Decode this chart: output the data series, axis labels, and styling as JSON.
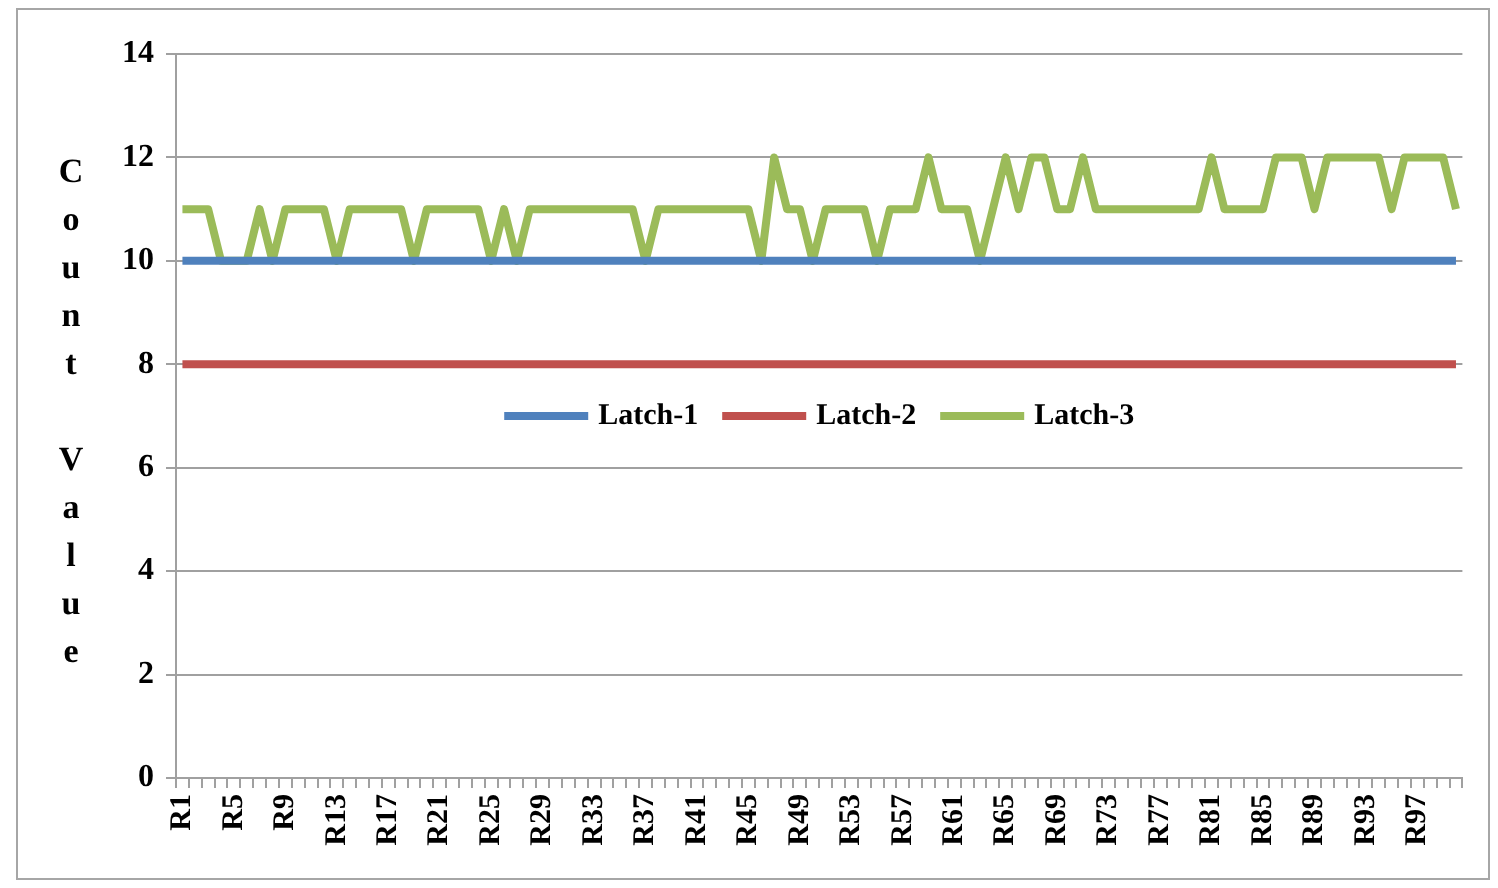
{
  "chart_data": {
    "type": "line",
    "ylabel": "Count Value",
    "categories": [
      "R1",
      null,
      null,
      null,
      "R5",
      null,
      null,
      null,
      "R9",
      null,
      null,
      null,
      "R13",
      null,
      null,
      null,
      "R17",
      null,
      null,
      null,
      "R21",
      null,
      null,
      null,
      "R25",
      null,
      null,
      null,
      "R29",
      null,
      null,
      null,
      "R33",
      null,
      null,
      null,
      "R37",
      null,
      null,
      null,
      "R41",
      null,
      null,
      null,
      "R45",
      null,
      null,
      null,
      "R49",
      null,
      null,
      null,
      "R53",
      null,
      null,
      null,
      "R57",
      null,
      null,
      null,
      "R61",
      null,
      null,
      null,
      "R65",
      null,
      null,
      null,
      "R69",
      null,
      null,
      null,
      "R73",
      null,
      null,
      null,
      "R77",
      null,
      null,
      null,
      "R81",
      null,
      null,
      null,
      "R85",
      null,
      null,
      null,
      "R89",
      null,
      null,
      null,
      "R93",
      null,
      null,
      null,
      "R97",
      null,
      null,
      null
    ],
    "series": [
      {
        "name": "Latch-1",
        "color": "#4f81bd",
        "values": [
          10,
          10,
          10,
          10,
          10,
          10,
          10,
          10,
          10,
          10,
          10,
          10,
          10,
          10,
          10,
          10,
          10,
          10,
          10,
          10,
          10,
          10,
          10,
          10,
          10,
          10,
          10,
          10,
          10,
          10,
          10,
          10,
          10,
          10,
          10,
          10,
          10,
          10,
          10,
          10,
          10,
          10,
          10,
          10,
          10,
          10,
          10,
          10,
          10,
          10,
          10,
          10,
          10,
          10,
          10,
          10,
          10,
          10,
          10,
          10,
          10,
          10,
          10,
          10,
          10,
          10,
          10,
          10,
          10,
          10,
          10,
          10,
          10,
          10,
          10,
          10,
          10,
          10,
          10,
          10,
          10,
          10,
          10,
          10,
          10,
          10,
          10,
          10,
          10,
          10,
          10,
          10,
          10,
          10,
          10,
          10,
          10,
          10,
          10,
          10
        ]
      },
      {
        "name": "Latch-2",
        "color": "#c0504d",
        "values": [
          8,
          8,
          8,
          8,
          8,
          8,
          8,
          8,
          8,
          8,
          8,
          8,
          8,
          8,
          8,
          8,
          8,
          8,
          8,
          8,
          8,
          8,
          8,
          8,
          8,
          8,
          8,
          8,
          8,
          8,
          8,
          8,
          8,
          8,
          8,
          8,
          8,
          8,
          8,
          8,
          8,
          8,
          8,
          8,
          8,
          8,
          8,
          8,
          8,
          8,
          8,
          8,
          8,
          8,
          8,
          8,
          8,
          8,
          8,
          8,
          8,
          8,
          8,
          8,
          8,
          8,
          8,
          8,
          8,
          8,
          8,
          8,
          8,
          8,
          8,
          8,
          8,
          8,
          8,
          8,
          8,
          8,
          8,
          8,
          8,
          8,
          8,
          8,
          8,
          8,
          8,
          8,
          8,
          8,
          8,
          8,
          8,
          8,
          8,
          8
        ]
      },
      {
        "name": "Latch-3",
        "color": "#9bbb59",
        "values": [
          11,
          11,
          11,
          10,
          10,
          10,
          11,
          10,
          11,
          11,
          11,
          11,
          10,
          11,
          11,
          11,
          11,
          11,
          10,
          11,
          11,
          11,
          11,
          11,
          10,
          11,
          10,
          11,
          11,
          11,
          11,
          11,
          11,
          11,
          11,
          11,
          10,
          11,
          11,
          11,
          11,
          11,
          11,
          11,
          11,
          10,
          12,
          11,
          11,
          10,
          11,
          11,
          11,
          11,
          10,
          11,
          11,
          11,
          12,
          11,
          11,
          11,
          10,
          11,
          12,
          11,
          12,
          12,
          11,
          11,
          12,
          11,
          11,
          11,
          11,
          11,
          11,
          11,
          11,
          11,
          12,
          11,
          11,
          11,
          11,
          12,
          12,
          12,
          11,
          12,
          12,
          12,
          12,
          12,
          11,
          12,
          12,
          12,
          12,
          11
        ]
      }
    ],
    "ylim": [
      0,
      14
    ],
    "yticks": [
      0,
      2,
      4,
      6,
      8,
      10,
      12,
      14
    ],
    "grid": "y",
    "legend": "center",
    "marker": "none",
    "line_style": "solid"
  }
}
